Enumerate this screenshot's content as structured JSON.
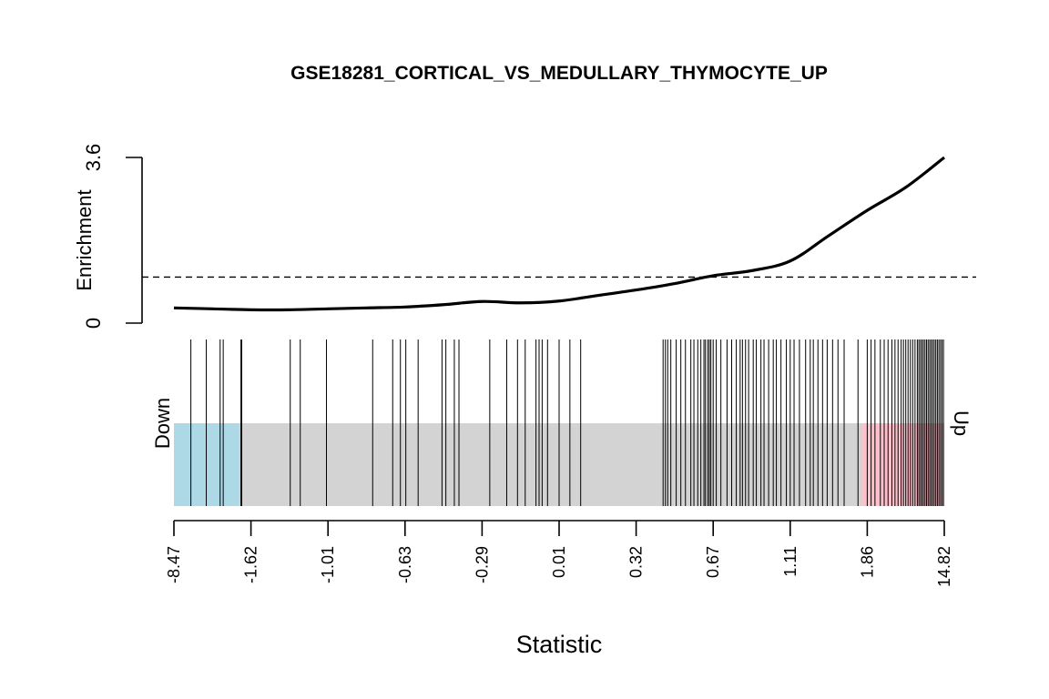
{
  "chart_data": {
    "type": "barcode",
    "title": "GSE18281_CORTICAL_VS_MEDULLARY_THYMOCYTE_UP",
    "xlabel": "Statistic",
    "enrichment": {
      "ylabel": "Enrichment",
      "ylim": [
        0,
        3.6
      ],
      "yticks": [
        "0",
        "3.6"
      ],
      "reference_line": 1.0,
      "curve": [
        {
          "rank": 0.0,
          "value": 0.33
        },
        {
          "rank": 0.05,
          "value": 0.31
        },
        {
          "rank": 0.1,
          "value": 0.29
        },
        {
          "rank": 0.15,
          "value": 0.29
        },
        {
          "rank": 0.2,
          "value": 0.31
        },
        {
          "rank": 0.25,
          "value": 0.33
        },
        {
          "rank": 0.3,
          "value": 0.35
        },
        {
          "rank": 0.35,
          "value": 0.4
        },
        {
          "rank": 0.4,
          "value": 0.47
        },
        {
          "rank": 0.45,
          "value": 0.44
        },
        {
          "rank": 0.5,
          "value": 0.48
        },
        {
          "rank": 0.55,
          "value": 0.6
        },
        {
          "rank": 0.6,
          "value": 0.72
        },
        {
          "rank": 0.65,
          "value": 0.86
        },
        {
          "rank": 0.7,
          "value": 1.03
        },
        {
          "rank": 0.75,
          "value": 1.14
        },
        {
          "rank": 0.8,
          "value": 1.35
        },
        {
          "rank": 0.85,
          "value": 1.9
        },
        {
          "rank": 0.9,
          "value": 2.45
        },
        {
          "rank": 0.95,
          "value": 2.95
        },
        {
          "rank": 1.0,
          "value": 3.6
        }
      ]
    },
    "barcode": {
      "down_label": "Down",
      "up_label": "Up",
      "down_region": [
        0,
        0.085
      ],
      "up_region": [
        0.893,
        1.0
      ],
      "colors": {
        "down": "#ADD8E6",
        "middle": "#D3D3D3",
        "up": "#FFC0CB",
        "bar": "#000000",
        "curve": "#000000"
      },
      "gene_ranks": [
        0.022,
        0.042,
        0.06,
        0.064,
        0.087,
        0.088,
        0.151,
        0.164,
        0.198,
        0.258,
        0.284,
        0.294,
        0.301,
        0.317,
        0.348,
        0.353,
        0.364,
        0.37,
        0.41,
        0.432,
        0.446,
        0.456,
        0.47,
        0.474,
        0.478,
        0.485,
        0.5,
        0.514,
        0.528,
        0.635,
        0.638,
        0.641,
        0.645,
        0.652,
        0.658,
        0.664,
        0.671,
        0.675,
        0.68,
        0.684,
        0.688,
        0.69,
        0.693,
        0.695,
        0.697,
        0.7,
        0.704,
        0.71,
        0.718,
        0.724,
        0.73,
        0.735,
        0.738,
        0.742,
        0.746,
        0.752,
        0.756,
        0.762,
        0.766,
        0.772,
        0.778,
        0.782,
        0.788,
        0.795,
        0.8,
        0.805,
        0.812,
        0.82,
        0.826,
        0.83,
        0.836,
        0.842,
        0.848,
        0.855,
        0.862,
        0.87,
        0.888,
        0.9,
        0.905,
        0.91,
        0.917,
        0.922,
        0.927,
        0.932,
        0.936,
        0.94,
        0.944,
        0.947,
        0.95,
        0.953,
        0.956,
        0.959,
        0.962,
        0.965,
        0.967,
        0.969,
        0.971,
        0.973,
        0.975,
        0.977,
        0.979,
        0.981,
        0.983,
        0.985,
        0.987,
        0.989,
        0.991,
        0.993,
        0.995,
        0.997,
        0.999
      ]
    },
    "x_ticks": [
      "-8.47",
      "-1.62",
      "-1.01",
      "-0.63",
      "-0.29",
      "0.01",
      "0.32",
      "0.67",
      "1.11",
      "1.86",
      "14.82"
    ]
  }
}
